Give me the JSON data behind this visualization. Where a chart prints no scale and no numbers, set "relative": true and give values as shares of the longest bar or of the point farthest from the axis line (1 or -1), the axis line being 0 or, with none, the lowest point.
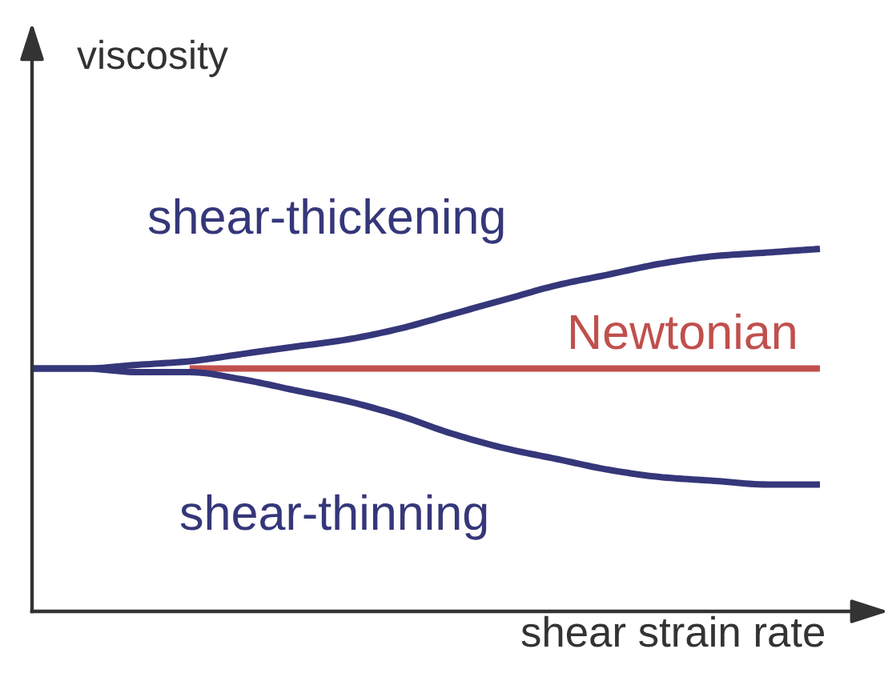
{
  "chart_data": {
    "type": "line",
    "relative": true,
    "xlabel": "shear strain rate",
    "ylabel": "viscosity",
    "line_style": "solid",
    "categories": [
      null,
      null,
      null,
      null,
      null,
      null,
      null,
      null,
      null,
      null,
      null,
      null,
      null,
      null,
      null,
      null
    ],
    "series": [
      {
        "name": "shear-thickening",
        "color": "#35377a",
        "values": [
          0.67,
          0.67,
          0.68,
          0.69,
          0.71,
          0.73,
          0.75,
          0.78,
          0.82,
          0.86,
          0.9,
          0.93,
          0.96,
          0.98,
          0.99,
          1.0
        ]
      },
      {
        "name": "Newtonian",
        "color": "#c0504d",
        "values": [
          null,
          null,
          null,
          0.67,
          0.67,
          0.67,
          0.67,
          0.67,
          0.67,
          0.67,
          0.67,
          0.67,
          0.67,
          0.67,
          0.67,
          0.67
        ]
      },
      {
        "name": "shear-thinning",
        "color": "#35377a",
        "values": [
          0.67,
          0.67,
          0.66,
          0.66,
          0.64,
          0.61,
          0.58,
          0.54,
          0.49,
          0.45,
          0.42,
          0.39,
          0.37,
          0.36,
          0.35,
          0.35
        ]
      }
    ]
  }
}
